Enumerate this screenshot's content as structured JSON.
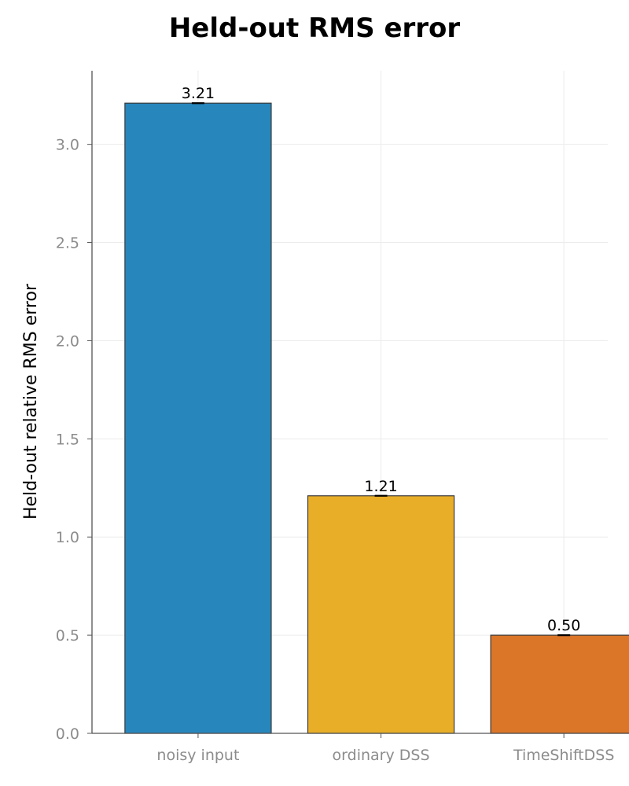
{
  "chart_data": {
    "type": "bar",
    "title": "Held-out RMS error",
    "xlabel": "",
    "ylabel": "Held-out relative RMS error",
    "categories": [
      "noisy input",
      "ordinary DSS",
      "TimeShiftDSS"
    ],
    "values": [
      3.21,
      1.21,
      0.5
    ],
    "value_labels": [
      "3.21",
      "1.21",
      "0.50"
    ],
    "colors": [
      "#2787bd",
      "#e8ae28",
      "#db7628"
    ],
    "ylim": [
      0,
      3.375
    ],
    "yticks": [
      0.0,
      0.5,
      1.0,
      1.5,
      2.0,
      2.5,
      3.0
    ],
    "ytick_labels": [
      "0.0",
      "0.5",
      "1.0",
      "1.5",
      "2.0",
      "2.5",
      "3.0"
    ],
    "grid": true,
    "legend": "none"
  }
}
